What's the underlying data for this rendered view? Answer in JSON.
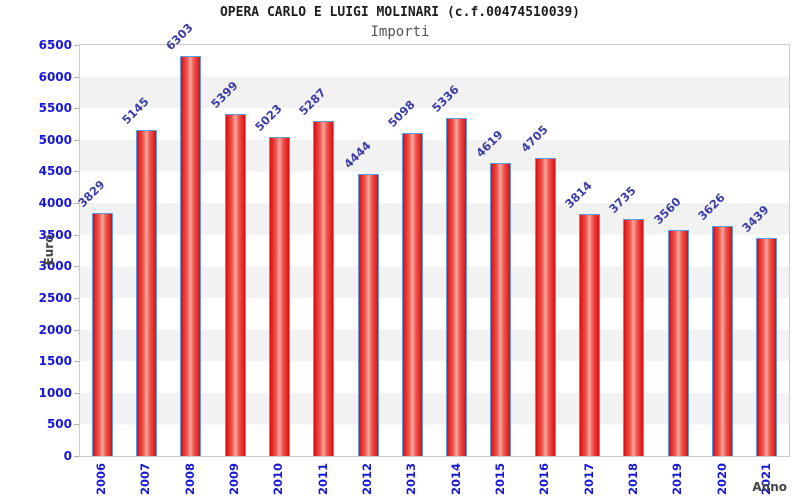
{
  "chart_data": {
    "type": "bar",
    "title": "OPERA CARLO E LUIGI MOLINARI (c.f.00474510039)",
    "subtitle": "Importi",
    "xlabel": "Anno",
    "ylabel": "Euro",
    "categories": [
      "2006",
      "2007",
      "2008",
      "2009",
      "2010",
      "2011",
      "2012",
      "2013",
      "2014",
      "2015",
      "2016",
      "2017",
      "2018",
      "2019",
      "2020",
      "2021"
    ],
    "values": [
      3829,
      5145,
      6303,
      5399,
      5023,
      5287,
      4444,
      5098,
      5336,
      4619,
      4705,
      3814,
      3735,
      3560,
      3626,
      3439
    ],
    "ylim": [
      0,
      6500
    ],
    "ytick_step": 500,
    "grid": "horizontal-alternating-bands",
    "legend": "none",
    "colors": {
      "bar_fill": "#dc0f0f",
      "bar_highlight": "#f7a8a0",
      "bar_border": "#5c9ce6",
      "band_gray": "#f2f2f2",
      "band_white": "#ffffff",
      "tick_label": "#1717d6",
      "value_label": "#3c3ca8",
      "axis_text": "#454545",
      "plot_border": "#cccccc"
    }
  }
}
